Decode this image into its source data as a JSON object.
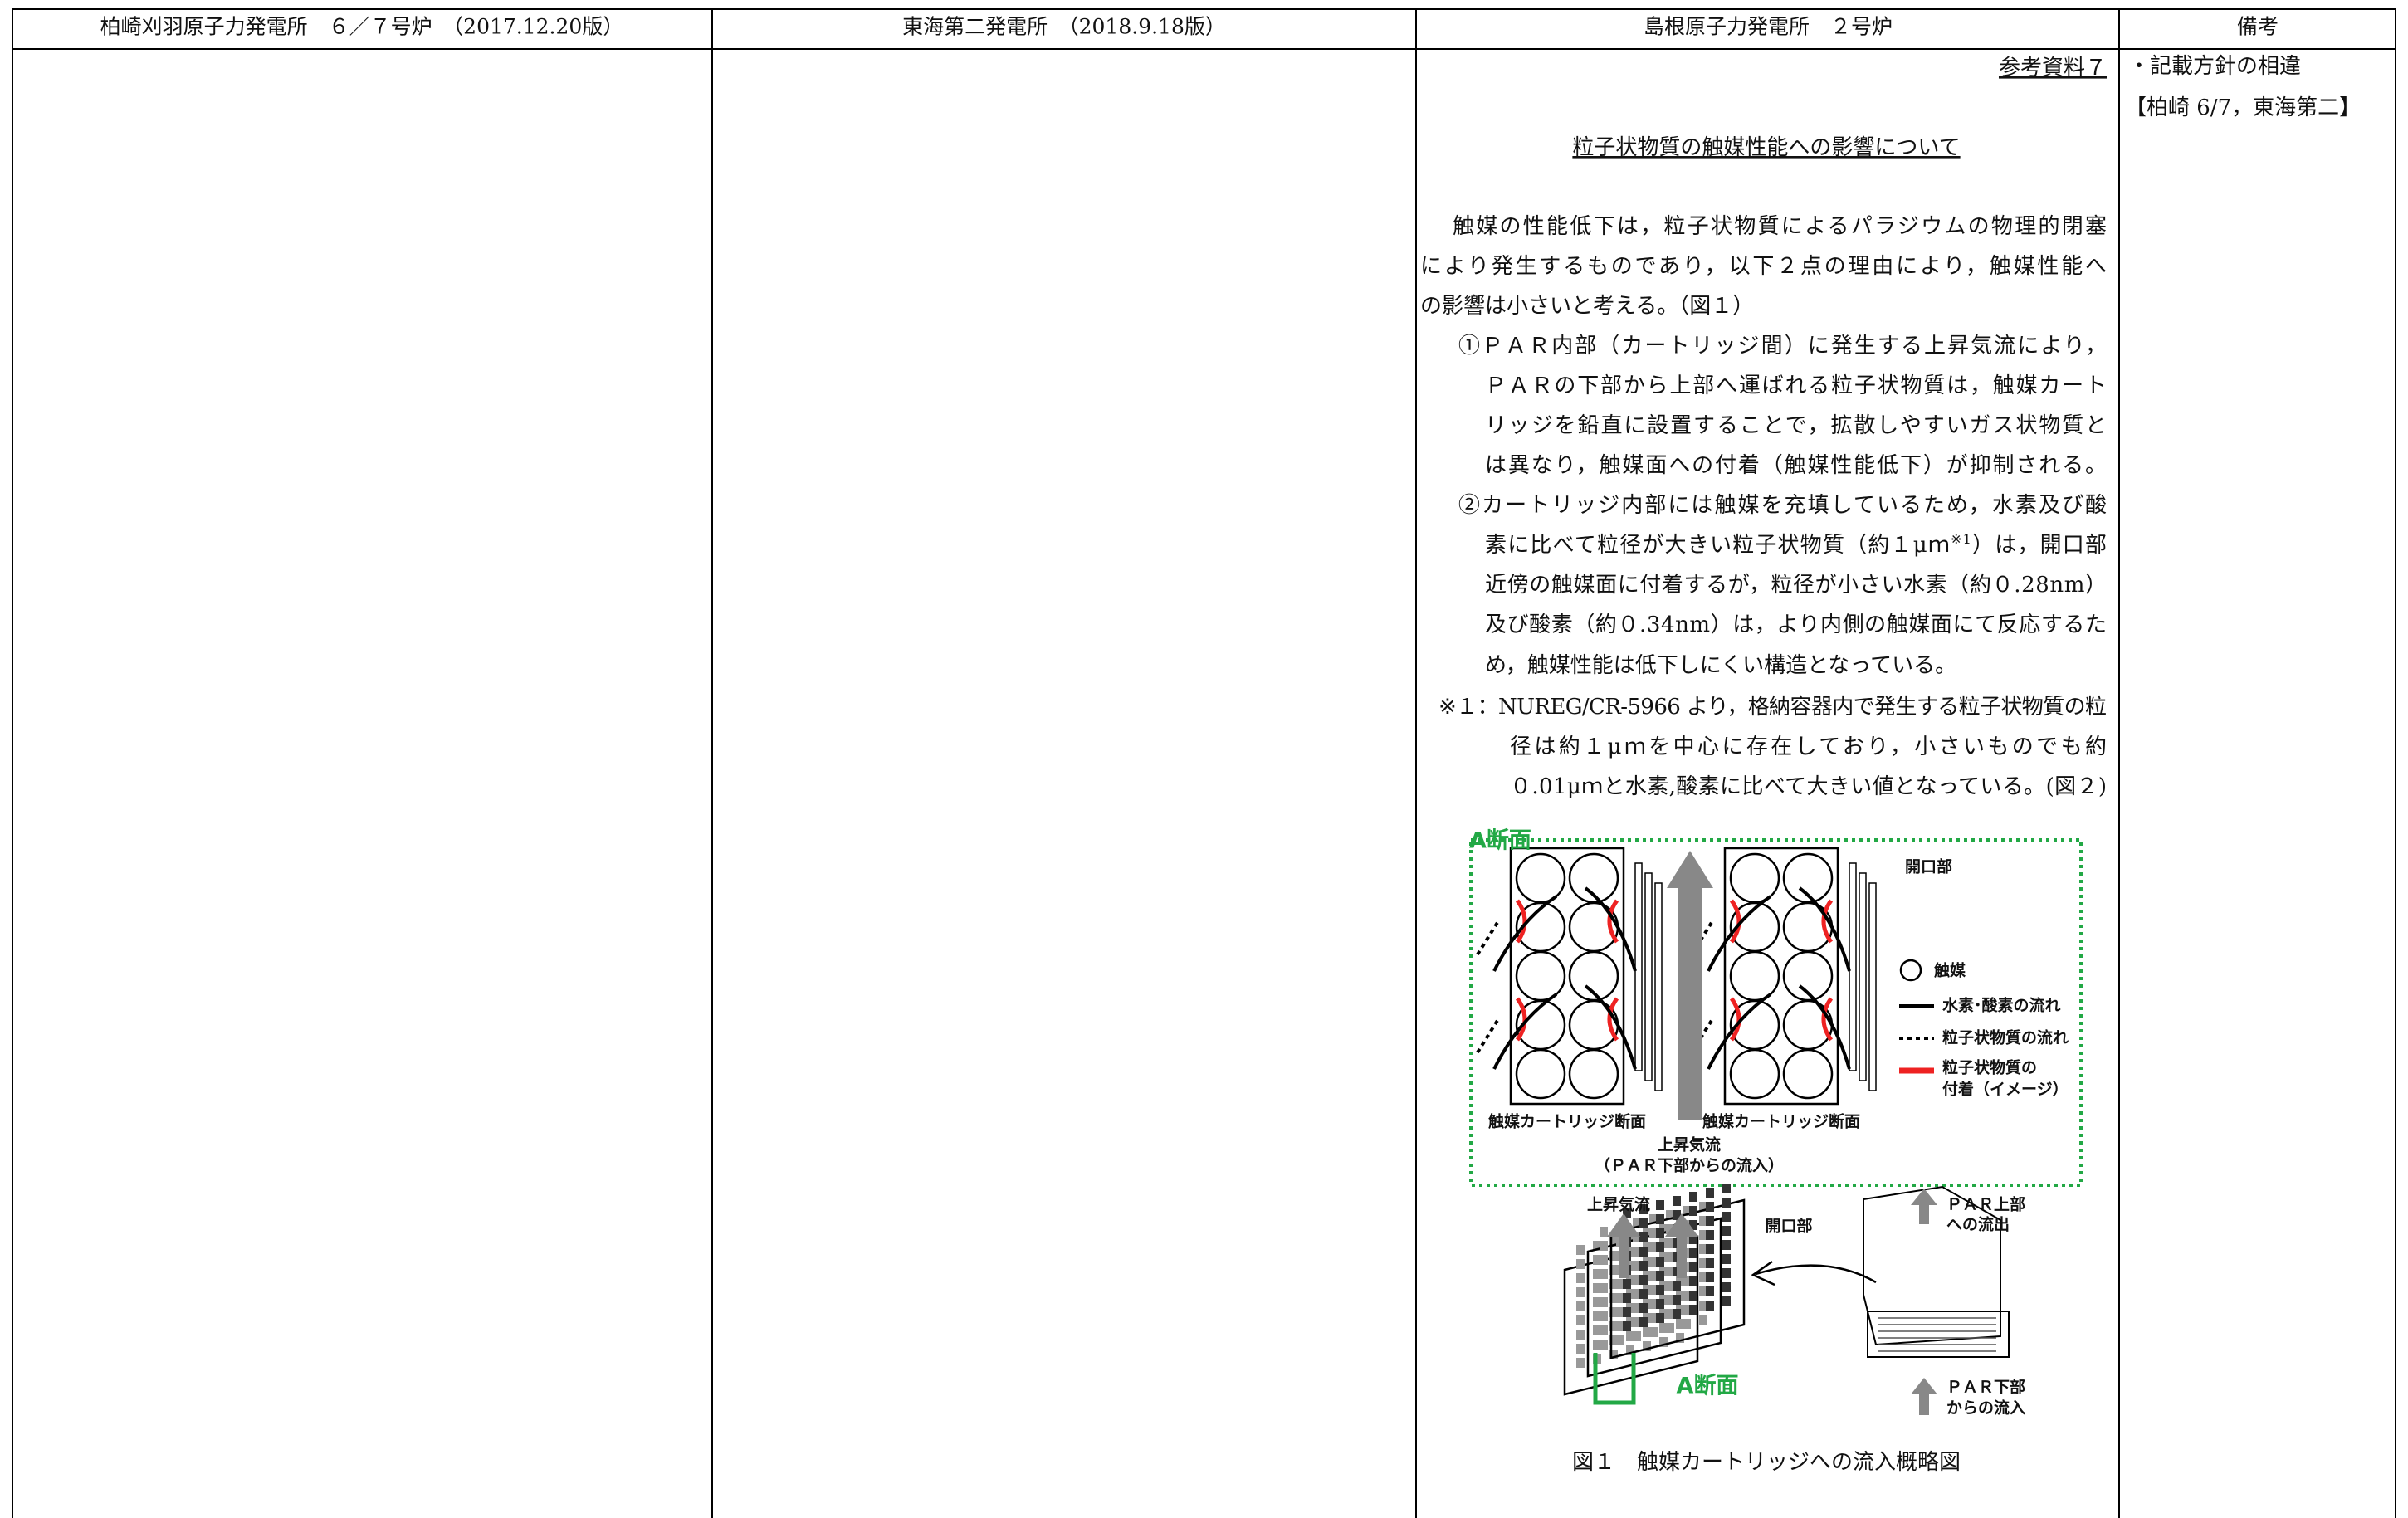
{
  "header": {
    "columns": [
      "柏崎刈羽原子力発電所　６／７号炉　（2017.12.20版）",
      "東海第二発電所　（2018.9.18版）",
      "島根原子力発電所　２号炉",
      "備考"
    ]
  },
  "shimane": {
    "reference": "参考資料７",
    "title": "粒子状物質の触媒性能への影響について",
    "intro": [
      "触媒の性能低下は，粒子状物質によるパラジウムの物理的閉塞",
      "により発生するものであり，以下２点の理由により，触媒性能へ",
      "の影響は小さいと考える。（図１）"
    ],
    "items": [
      [
        "①ＰＡＲ内部（カートリッジ間）に発生する上昇気流により，",
        "ＰＡＲの下部から上部へ運ばれる粒子状物質は，触媒カート",
        "リッジを鉛直に設置することで，拡散しやすいガス状物質と",
        "は異なり，触媒面への付着（触媒性能低下）が抑制される。"
      ],
      [
        "②カートリッジ内部には触媒を充填しているため，水素及び酸",
        [
          "素に比べて粒径が大きい粒子状物質（約１μｍ",
          "※1",
          "）は，開口部"
        ],
        "近傍の触媒面に付着するが，粒径が小さい水素（約０.28nm）",
        "及び酸素（約０.34nm）は，より内側の触媒面にて反応するた",
        "め，触媒性能は低下しにくい構造となっている。"
      ]
    ],
    "note": [
      "※１：NUREG/CR-5966 より，格納容器内で発生する粒子状物質の粒",
      "径は約１μｍを中心に存在しており，小さいものでも約",
      "０.01μｍと水素,酸素に比べて大きい値となっている。(図２)"
    ],
    "figure": {
      "section_label_top": "A断面",
      "opening_top": "開口部",
      "legend": [
        "触媒",
        "水素･酸素の流れ",
        "粒子状物質の流れ",
        "粒子状物質の",
        "付着（イメージ）"
      ],
      "cartridge_section": [
        "触媒カートリッジ断面",
        "触媒カートリッジ断面"
      ],
      "updraft_top": [
        "上昇気流",
        "（ＰＡＲ下部からの流入）"
      ],
      "updraft_bottom": "上昇気流",
      "opening_bottom": "開口部",
      "par_top": [
        "ＰＡＲ上部",
        "への流出"
      ],
      "par_bottom": [
        "ＰＡＲ下部",
        "からの流入"
      ],
      "section_label_bottom": "A断面"
    },
    "caption": "図１　触媒カートリッジへの流入概略図"
  },
  "remarks": [
    "・記載方針の相違",
    "【柏崎 6/7，東海第二】"
  ]
}
